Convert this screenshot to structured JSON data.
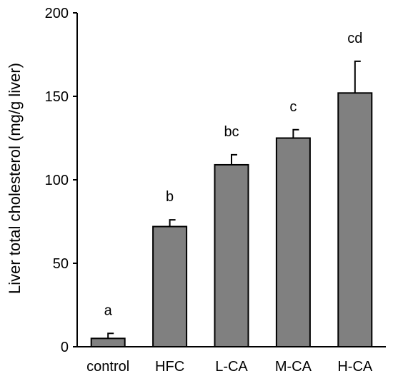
{
  "chart_data": {
    "type": "bar",
    "title": "",
    "xlabel": "",
    "ylabel": "Liver total cholesterol (mg/g liver)",
    "ylim": [
      0,
      200
    ],
    "yticks": [
      0,
      50,
      100,
      150,
      200
    ],
    "categories": [
      "control",
      "HFC",
      "L-CA",
      "M-CA",
      "H-CA"
    ],
    "values": [
      5,
      72,
      109,
      125,
      152
    ],
    "errors": [
      3,
      4,
      6,
      5,
      19
    ],
    "significance_labels": [
      "a",
      "b",
      "bc",
      "c",
      "cd"
    ],
    "colors": {
      "bar": "#808080",
      "outline": "#000000"
    },
    "grid": false,
    "legend": "none"
  }
}
